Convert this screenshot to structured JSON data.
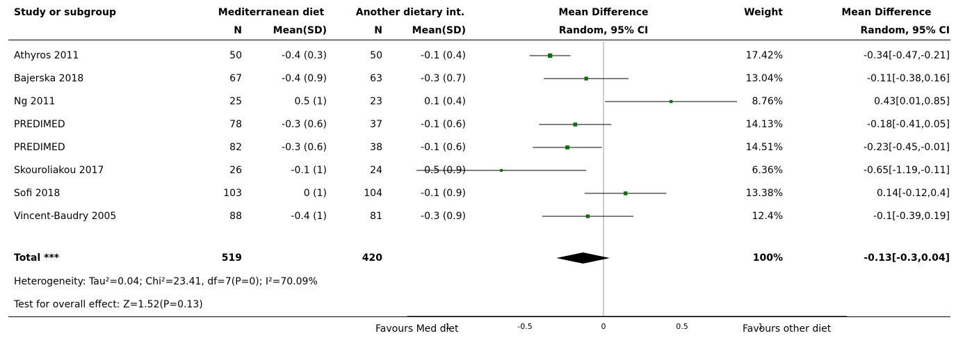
{
  "header": {
    "study": "Study or subgroup",
    "group1": "Mediterranean diet",
    "group2": "Another dietary int.",
    "md": "Mean Difference",
    "weight": "Weight",
    "md2": "Mean Difference",
    "n1": "N",
    "mean1": "Mean(SD)",
    "n2": "N",
    "mean2": "Mean(SD)",
    "method": "Random, 95% CI",
    "method2": "Random, 95% CI"
  },
  "rows": [
    {
      "study": "Athyros 2011",
      "n1": "50",
      "m1": "-0.4 (0.3)",
      "n2": "50",
      "m2": "-0.1 (0.4)",
      "weight": "17.42%",
      "ci": "-0.34[-0.47,-0.21]"
    },
    {
      "study": "Bajerska 2018",
      "n1": "67",
      "m1": "-0.4 (0.9)",
      "n2": "63",
      "m2": "-0.3 (0.7)",
      "weight": "13.04%",
      "ci": "-0.11[-0.38,0.16]"
    },
    {
      "study": "Ng 2011",
      "n1": "25",
      "m1": "0.5 (1)",
      "n2": "23",
      "m2": "0.1 (0.4)",
      "weight": "8.76%",
      "ci": "0.43[0.01,0.85]"
    },
    {
      "study": "PREDIMED",
      "n1": "78",
      "m1": "-0.3 (0.6)",
      "n2": "37",
      "m2": "-0.1 (0.6)",
      "weight": "14.13%",
      "ci": "-0.18[-0.41,0.05]"
    },
    {
      "study": "PREDIMED",
      "n1": "82",
      "m1": "-0.3 (0.6)",
      "n2": "38",
      "m2": "-0.1 (0.6)",
      "weight": "14.51%",
      "ci": "-0.23[-0.45,-0.01]"
    },
    {
      "study": "Skouroliakou 2017",
      "n1": "26",
      "m1": "-0.1 (1)",
      "n2": "24",
      "m2": "0.5 (0.9)",
      "weight": "6.36%",
      "ci": "-0.65[-1.19,-0.11]"
    },
    {
      "study": "Sofi 2018",
      "n1": "103",
      "m1": "0 (1)",
      "n2": "104",
      "m2": "-0.1 (0.9)",
      "weight": "13.38%",
      "ci": "0.14[-0.12,0.4]"
    },
    {
      "study": "Vincent-Baudry 2005",
      "n1": "88",
      "m1": "-0.4 (1)",
      "n2": "81",
      "m2": "-0.3 (0.9)",
      "weight": "12.4%",
      "ci": "-0.1[-0.39,0.19]"
    }
  ],
  "total": {
    "label": "Total ***",
    "n1": "519",
    "n2": "420",
    "weight": "100%",
    "ci": "-0.13[-0.3,0.04]"
  },
  "heterogeneity": "Heterogeneity: Tau²=0.04; Chi²=23.41, df=7(P=0); I²=70.09%",
  "overall_effect": "Test for overall effect: Z=1.52(P=0.13)",
  "footer": {
    "left": "Favours Med diet",
    "right": "Favours other diet"
  },
  "colors": {
    "marker": "#0a6e0a",
    "line": "#000000",
    "zero_line": "#999999"
  },
  "chart_data": {
    "type": "forest",
    "xlim": [
      -1.25,
      1.55
    ],
    "ticks": [
      -1,
      -0.5,
      0,
      0.5,
      1
    ],
    "tick_labels": [
      "-1",
      "-0.5",
      "0",
      "0.5",
      "1"
    ],
    "studies": [
      {
        "name": "Athyros 2011",
        "md": -0.34,
        "lo": -0.47,
        "hi": -0.21,
        "weight": 17.42
      },
      {
        "name": "Bajerska 2018",
        "md": -0.11,
        "lo": -0.38,
        "hi": 0.16,
        "weight": 13.04
      },
      {
        "name": "Ng 2011",
        "md": 0.43,
        "lo": 0.01,
        "hi": 0.85,
        "weight": 8.76
      },
      {
        "name": "PREDIMED",
        "md": -0.18,
        "lo": -0.41,
        "hi": 0.05,
        "weight": 14.13
      },
      {
        "name": "PREDIMED",
        "md": -0.23,
        "lo": -0.45,
        "hi": -0.01,
        "weight": 14.51
      },
      {
        "name": "Skouroliakou 2017",
        "md": -0.65,
        "lo": -1.19,
        "hi": -0.11,
        "weight": 6.36
      },
      {
        "name": "Sofi 2018",
        "md": 0.14,
        "lo": -0.12,
        "hi": 0.4,
        "weight": 13.38
      },
      {
        "name": "Vincent-Baudry 2005",
        "md": -0.1,
        "lo": -0.39,
        "hi": 0.19,
        "weight": 12.4
      }
    ],
    "pooled": {
      "md": -0.13,
      "lo": -0.3,
      "hi": 0.04
    }
  }
}
